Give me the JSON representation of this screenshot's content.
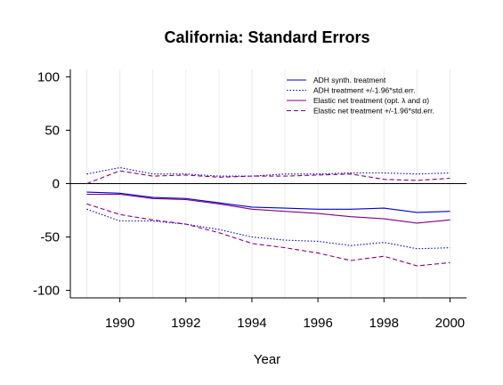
{
  "chart_data": {
    "type": "line",
    "title": "California: Standard Errors",
    "xlabel": "Year",
    "ylabel": "",
    "xlim": [
      1988.5,
      2000.5
    ],
    "ylim": [
      -107,
      107
    ],
    "x_ticks": [
      "1990",
      "1992",
      "1994",
      "1996",
      "1998",
      "2000"
    ],
    "y_ticks": [
      "100",
      "50",
      "0",
      "-50",
      "-100"
    ],
    "grid": "vertical-light",
    "reference_line": 0,
    "legend_position": "top-right",
    "x": [
      1989,
      1990,
      1991,
      1992,
      1993,
      1994,
      1995,
      1996,
      1997,
      1998,
      1999,
      2000
    ],
    "series": [
      {
        "name": "ADH synth. treatment",
        "color": "#0000cc",
        "dash": "solid",
        "values": [
          -8,
          -9,
          -13,
          -14,
          -18,
          -22,
          -23,
          -24,
          -24,
          -23,
          -27,
          -26
        ]
      },
      {
        "name": "ADH treatment +/-1.96*std.err.",
        "color": "#0000cc",
        "dash": "dotted",
        "values": [
          -24,
          -35,
          -35,
          -38,
          -43,
          -50,
          -53,
          -54,
          -58,
          -55,
          -61,
          -60
        ]
      },
      {
        "name": "",
        "color": "#0000cc",
        "dash": "dotted",
        "values": [
          9,
          15,
          9,
          9,
          7,
          7,
          9,
          9,
          10,
          10,
          9,
          10
        ]
      },
      {
        "name": "Elastic net treatment (opt. λ and α)",
        "color": "#800080",
        "dash": "solid",
        "values": [
          -10,
          -10,
          -14,
          -15,
          -19,
          -24,
          -26,
          -28,
          -31,
          -33,
          -37,
          -34
        ]
      },
      {
        "name": "Elastic net treatment +/-1.96*std.err.",
        "color": "#800080",
        "dash": "dashed",
        "values": [
          -19,
          -29,
          -34,
          -38,
          -46,
          -56,
          -60,
          -65,
          -72,
          -68,
          -77,
          -74
        ]
      },
      {
        "name": "",
        "color": "#800080",
        "dash": "dashed",
        "values": [
          0,
          12,
          7,
          8,
          6,
          7,
          7,
          8,
          9,
          4,
          3,
          5
        ]
      }
    ]
  }
}
